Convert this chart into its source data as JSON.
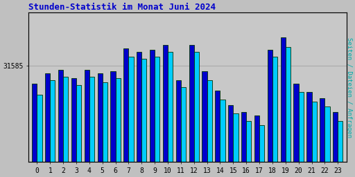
{
  "title": "Stunden-Statistik im Monat Juni 2024",
  "title_color": "#0000cc",
  "title_fontsize": 9,
  "ylabel_right": "Seiten / Dateien / Anfragen",
  "ylabel_right_color": "#00aaaa",
  "background_color": "#c0c0c0",
  "plot_bg_color": "#c8c8c8",
  "hours": [
    0,
    1,
    2,
    3,
    4,
    5,
    6,
    7,
    8,
    9,
    10,
    11,
    12,
    13,
    14,
    15,
    16,
    17,
    18,
    19,
    20,
    21,
    22,
    23
  ],
  "blue_bars": [
    31560,
    31575,
    31580,
    31568,
    31580,
    31575,
    31578,
    31610,
    31605,
    31608,
    31615,
    31565,
    31615,
    31578,
    31550,
    31530,
    31520,
    31515,
    31608,
    31625,
    31560,
    31548,
    31540,
    31520
  ],
  "cyan_bars": [
    31545,
    31565,
    31570,
    31558,
    31570,
    31562,
    31568,
    31598,
    31595,
    31598,
    31605,
    31555,
    31605,
    31565,
    31538,
    31518,
    31508,
    31502,
    31598,
    31612,
    31548,
    31535,
    31528,
    31508
  ],
  "blue_color": "#0000cc",
  "cyan_color": "#00ccff",
  "bar_edge_color": "#003300",
  "ytick_label": "31585",
  "ytick_value": 31585,
  "ylim_min": 31450,
  "ylim_max": 31660,
  "bar_width": 0.38
}
